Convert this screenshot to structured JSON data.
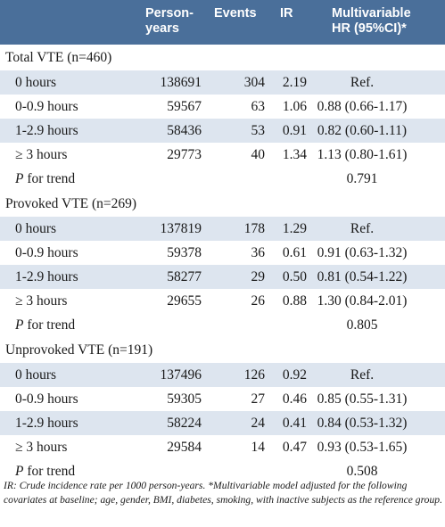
{
  "header": {
    "person_years": [
      "Person-",
      "years"
    ],
    "events": "Events",
    "ir": "IR",
    "hr": [
      "Multivariable",
      "HR (95%CI)*"
    ]
  },
  "sections": [
    {
      "title": "Total VTE (n=460)",
      "rows": [
        {
          "label": "0 hours",
          "person_years": "138691",
          "events": "304",
          "ir": "2.19",
          "hr": "Ref."
        },
        {
          "label": "0-0.9 hours",
          "person_years": "59567",
          "events": "63",
          "ir": "1.06",
          "hr": "0.88 (0.66-1.17)"
        },
        {
          "label": "1-2.9 hours",
          "person_years": "58436",
          "events": "53",
          "ir": "0.91",
          "hr": "0.82 (0.60-1.11)"
        },
        {
          "label": "≥ 3 hours",
          "person_years": "29773",
          "events": "40",
          "ir": "1.34",
          "hr": "1.13 (0.80-1.61)"
        }
      ],
      "p_label_italic": "P",
      "p_label_rest": " for trend",
      "p_value": "0.791"
    },
    {
      "title": "Provoked VTE (n=269)",
      "rows": [
        {
          "label": "0 hours",
          "person_years": "137819",
          "events": "178",
          "ir": "1.29",
          "hr": "Ref."
        },
        {
          "label": "0-0.9 hours",
          "person_years": "59378",
          "events": "36",
          "ir": "0.61",
          "hr": "0.91 (0.63-1.32)"
        },
        {
          "label": "1-2.9 hours",
          "person_years": "58277",
          "events": "29",
          "ir": "0.50",
          "hr": "0.81 (0.54-1.22)"
        },
        {
          "label": "≥ 3 hours",
          "person_years": "29655",
          "events": "26",
          "ir": "0.88",
          "hr": "1.30 (0.84-2.01)"
        }
      ],
      "p_label_italic": "P",
      "p_label_rest": " for trend",
      "p_value": "0.805"
    },
    {
      "title": "Unprovoked VTE (n=191)",
      "rows": [
        {
          "label": "0 hours",
          "person_years": "137496",
          "events": "126",
          "ir": "0.92",
          "hr": "Ref."
        },
        {
          "label": "0-0.9 hours",
          "person_years": "59305",
          "events": "27",
          "ir": "0.46",
          "hr": "0.85 (0.55-1.31)"
        },
        {
          "label": "1-2.9 hours",
          "person_years": "58224",
          "events": "24",
          "ir": "0.41",
          "hr": "0.84 (0.53-1.32)"
        },
        {
          "label": "≥ 3 hours",
          "person_years": "29584",
          "events": "14",
          "ir": "0.47",
          "hr": "0.93 (0.53-1.65)"
        }
      ],
      "p_label_italic": "P",
      "p_label_rest": " for trend",
      "p_value": "0.508"
    }
  ],
  "footnote": "IR: Crude incidence rate per 1000 person-years.  *Multivariable model adjusted for the following covariates at baseline; age, gender, BMI, diabetes, smoking, with inactive subjects as the reference group.",
  "colors": {
    "header_bg": "#4a6f9a",
    "row_shade": "#dde5ef"
  }
}
